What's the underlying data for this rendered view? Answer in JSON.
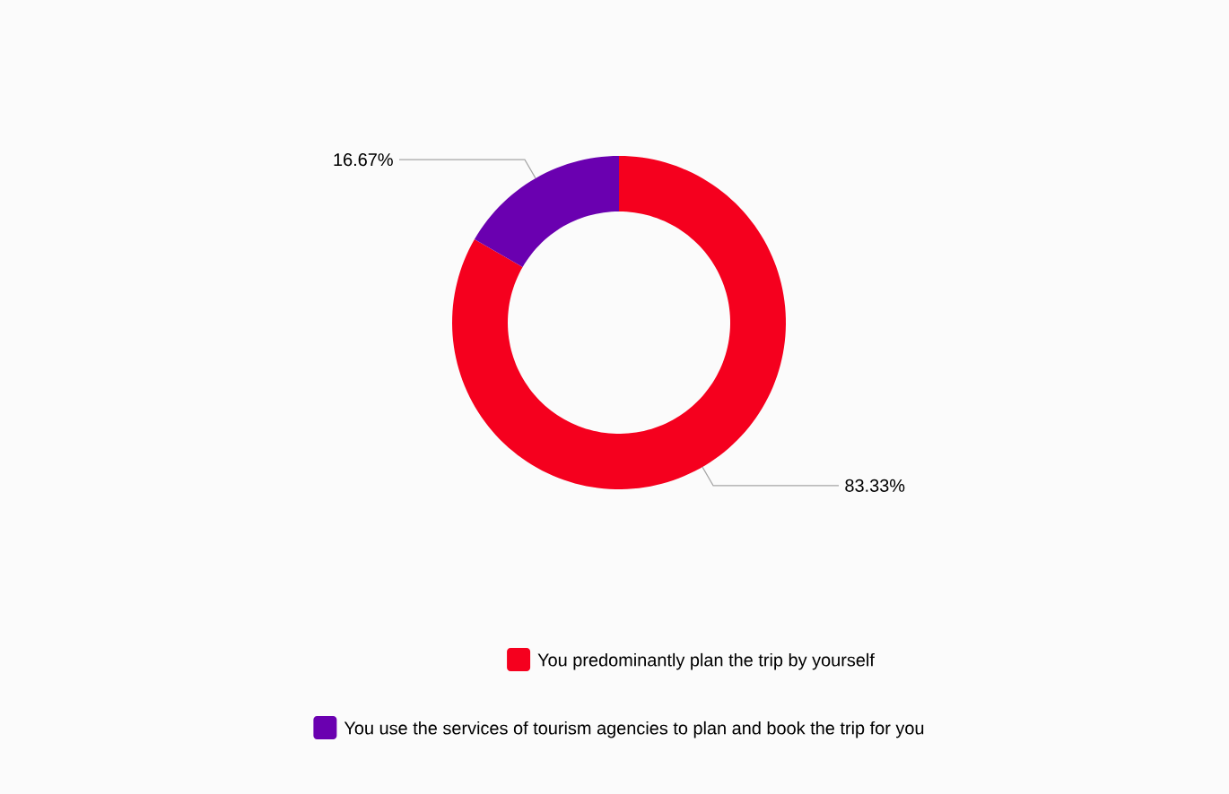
{
  "chart_data": {
    "type": "donut",
    "categories": [
      "You predominantly plan the trip by yourself",
      "You use the services of tourism agencies to plan and book the trip for you"
    ],
    "values": [
      83.33,
      16.67
    ],
    "colors": [
      "#f5001e",
      "#6a00b0"
    ],
    "value_labels": [
      "83.33%",
      "16.67%"
    ],
    "legend": "bottom"
  }
}
